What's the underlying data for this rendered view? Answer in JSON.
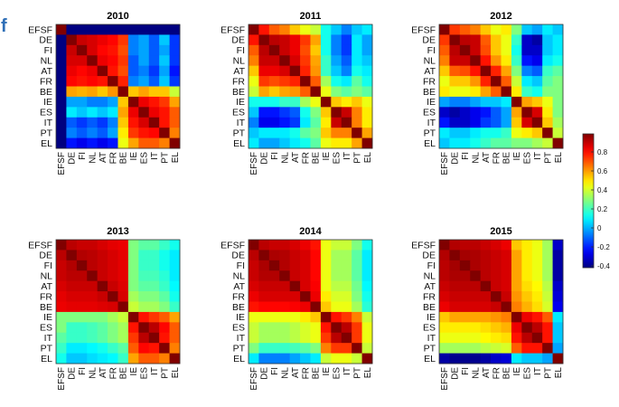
{
  "edge_glyph": "f",
  "chart_data": {
    "type": "heatmap",
    "labels": [
      "EFSF",
      "DE",
      "FI",
      "NL",
      "AT",
      "FR",
      "BE",
      "IE",
      "ES",
      "IT",
      "PT",
      "EL"
    ],
    "colorbar": {
      "ticks": [
        "0.8",
        "0.6",
        "0.4",
        "0.2",
        "0",
        "-0.2",
        "-0.4"
      ],
      "range": [
        -0.4,
        1.0
      ],
      "colormap": "jet"
    },
    "panels": [
      {
        "title": "2010",
        "matrix": [
          [
            1.0,
            -0.55,
            -0.55,
            -0.55,
            -0.55,
            -0.55,
            -0.55,
            -0.55,
            -0.55,
            -0.55,
            -0.55,
            -0.55
          ],
          [
            -0.55,
            1.0,
            0.9,
            0.88,
            0.85,
            0.82,
            0.75,
            -0.05,
            0.0,
            -0.1,
            0.05,
            -0.15
          ],
          [
            -0.55,
            0.9,
            1.0,
            0.88,
            0.82,
            0.8,
            0.72,
            -0.05,
            0.0,
            -0.1,
            0.0,
            -0.15
          ],
          [
            -0.55,
            0.88,
            0.88,
            1.0,
            0.85,
            0.82,
            0.75,
            -0.1,
            0.0,
            -0.1,
            0.05,
            -0.15
          ],
          [
            -0.55,
            0.85,
            0.82,
            0.85,
            1.0,
            0.8,
            0.72,
            -0.1,
            -0.05,
            -0.15,
            0.0,
            -0.2
          ],
          [
            -0.55,
            0.82,
            0.8,
            0.82,
            0.8,
            1.0,
            0.78,
            -0.05,
            0.0,
            -0.1,
            0.05,
            -0.15
          ],
          [
            -0.55,
            0.6,
            0.58,
            0.6,
            0.55,
            0.62,
            1.0,
            0.55,
            0.6,
            0.55,
            0.55,
            0.4
          ],
          [
            -0.55,
            0.0,
            0.0,
            -0.05,
            -0.05,
            0.0,
            0.55,
            1.0,
            0.85,
            0.8,
            0.75,
            0.6
          ],
          [
            -0.55,
            0.1,
            0.05,
            0.1,
            0.05,
            0.1,
            0.6,
            0.85,
            1.0,
            0.85,
            0.8,
            0.7
          ],
          [
            -0.55,
            -0.1,
            -0.15,
            -0.1,
            -0.15,
            -0.05,
            0.55,
            0.8,
            0.88,
            1.0,
            0.8,
            0.7
          ],
          [
            -0.55,
            -0.05,
            -0.1,
            -0.05,
            -0.1,
            0.0,
            0.5,
            0.75,
            0.8,
            0.82,
            1.0,
            0.65
          ],
          [
            -0.55,
            -0.2,
            -0.25,
            -0.2,
            -0.25,
            -0.2,
            0.45,
            0.6,
            0.7,
            0.7,
            0.65,
            1.0
          ]
        ]
      },
      {
        "title": "2011",
        "matrix": [
          [
            1.0,
            0.8,
            0.7,
            0.65,
            0.55,
            0.45,
            0.4,
            0.15,
            0.05,
            -0.05,
            0.05,
            0.1
          ],
          [
            0.8,
            1.0,
            0.92,
            0.9,
            0.85,
            0.75,
            0.6,
            0.15,
            -0.05,
            -0.15,
            0.1,
            0.0
          ],
          [
            0.7,
            0.92,
            1.0,
            0.9,
            0.85,
            0.72,
            0.55,
            0.15,
            -0.05,
            -0.15,
            0.1,
            0.0
          ],
          [
            0.65,
            0.9,
            0.9,
            1.0,
            0.88,
            0.75,
            0.6,
            0.2,
            0.0,
            -0.1,
            0.1,
            0.05
          ],
          [
            0.55,
            0.85,
            0.85,
            0.88,
            1.0,
            0.78,
            0.62,
            0.2,
            0.05,
            -0.05,
            0.15,
            0.1
          ],
          [
            0.45,
            0.75,
            0.72,
            0.75,
            0.78,
            1.0,
            0.7,
            0.35,
            0.15,
            0.1,
            0.25,
            0.15
          ],
          [
            0.4,
            0.6,
            0.55,
            0.6,
            0.62,
            0.7,
            1.0,
            0.45,
            0.3,
            0.25,
            0.3,
            0.25
          ],
          [
            0.15,
            0.15,
            0.15,
            0.2,
            0.2,
            0.35,
            0.45,
            1.0,
            0.55,
            0.5,
            0.55,
            0.45
          ],
          [
            0.05,
            -0.2,
            -0.2,
            -0.15,
            -0.1,
            0.15,
            0.3,
            0.55,
            1.0,
            0.9,
            0.65,
            0.5
          ],
          [
            -0.05,
            -0.25,
            -0.25,
            -0.2,
            -0.15,
            0.1,
            0.25,
            0.5,
            0.9,
            1.0,
            0.65,
            0.5
          ],
          [
            0.05,
            0.1,
            0.1,
            0.1,
            0.15,
            0.25,
            0.3,
            0.55,
            0.65,
            0.65,
            1.0,
            0.6
          ],
          [
            0.1,
            0.0,
            0.0,
            0.05,
            0.1,
            0.15,
            0.25,
            0.45,
            0.5,
            0.5,
            0.6,
            1.0
          ]
        ]
      },
      {
        "title": "2012",
        "matrix": [
          [
            1.0,
            0.75,
            0.7,
            0.65,
            0.55,
            0.45,
            0.5,
            0.3,
            0.05,
            0.0,
            0.1,
            0.05
          ],
          [
            0.75,
            1.0,
            0.92,
            0.9,
            0.7,
            0.55,
            0.45,
            0.2,
            -0.3,
            -0.35,
            0.05,
            0.1
          ],
          [
            0.7,
            0.92,
            1.0,
            0.9,
            0.72,
            0.55,
            0.45,
            0.15,
            -0.3,
            -0.3,
            0.05,
            0.1
          ],
          [
            0.65,
            0.9,
            0.9,
            1.0,
            0.8,
            0.62,
            0.5,
            0.2,
            -0.2,
            -0.25,
            0.1,
            0.15
          ],
          [
            0.55,
            0.7,
            0.72,
            0.8,
            1.0,
            0.78,
            0.6,
            0.3,
            -0.05,
            -0.1,
            0.2,
            0.25
          ],
          [
            0.45,
            0.55,
            0.55,
            0.62,
            0.78,
            1.0,
            0.7,
            0.4,
            0.1,
            0.05,
            0.25,
            0.3
          ],
          [
            0.5,
            0.45,
            0.45,
            0.5,
            0.6,
            0.7,
            1.0,
            0.5,
            0.2,
            0.15,
            0.3,
            0.3
          ],
          [
            0.0,
            -0.05,
            -0.05,
            0.0,
            0.05,
            0.05,
            0.1,
            1.0,
            0.6,
            0.55,
            0.45,
            0.3
          ],
          [
            -0.3,
            -0.35,
            -0.3,
            -0.25,
            -0.2,
            -0.1,
            0.0,
            0.6,
            1.0,
            0.88,
            0.5,
            0.3
          ],
          [
            -0.2,
            -0.3,
            -0.3,
            -0.25,
            -0.15,
            -0.1,
            0.0,
            0.55,
            0.88,
            1.0,
            0.55,
            0.35
          ],
          [
            0.1,
            0.05,
            0.05,
            0.1,
            0.15,
            0.15,
            0.2,
            0.45,
            0.5,
            0.55,
            1.0,
            0.4
          ],
          [
            0.05,
            0.1,
            0.1,
            0.15,
            0.2,
            0.25,
            0.25,
            0.3,
            0.3,
            0.35,
            0.4,
            1.0
          ]
        ]
      },
      {
        "title": "2013",
        "matrix": [
          [
            1.0,
            0.92,
            0.9,
            0.9,
            0.88,
            0.86,
            0.85,
            0.3,
            0.25,
            0.25,
            0.2,
            0.15
          ],
          [
            0.92,
            1.0,
            0.93,
            0.92,
            0.9,
            0.88,
            0.86,
            0.3,
            0.2,
            0.2,
            0.15,
            0.1
          ],
          [
            0.9,
            0.93,
            1.0,
            0.92,
            0.9,
            0.88,
            0.86,
            0.3,
            0.2,
            0.2,
            0.15,
            0.1
          ],
          [
            0.9,
            0.92,
            0.92,
            1.0,
            0.9,
            0.88,
            0.86,
            0.3,
            0.22,
            0.22,
            0.18,
            0.1
          ],
          [
            0.88,
            0.9,
            0.9,
            0.9,
            1.0,
            0.9,
            0.87,
            0.3,
            0.25,
            0.25,
            0.2,
            0.12
          ],
          [
            0.86,
            0.88,
            0.88,
            0.88,
            0.9,
            1.0,
            0.88,
            0.35,
            0.3,
            0.3,
            0.25,
            0.15
          ],
          [
            0.85,
            0.86,
            0.86,
            0.86,
            0.87,
            0.88,
            1.0,
            0.4,
            0.35,
            0.35,
            0.3,
            0.2
          ],
          [
            0.3,
            0.3,
            0.3,
            0.3,
            0.3,
            0.35,
            0.4,
            1.0,
            0.8,
            0.75,
            0.7,
            0.6
          ],
          [
            0.3,
            0.2,
            0.2,
            0.22,
            0.25,
            0.3,
            0.35,
            0.8,
            1.0,
            0.92,
            0.82,
            0.7
          ],
          [
            0.25,
            0.2,
            0.2,
            0.22,
            0.25,
            0.3,
            0.35,
            0.75,
            0.92,
            1.0,
            0.8,
            0.7
          ],
          [
            0.2,
            0.1,
            0.1,
            0.12,
            0.15,
            0.2,
            0.25,
            0.7,
            0.82,
            0.8,
            1.0,
            0.65
          ],
          [
            0.15,
            0.05,
            0.05,
            0.08,
            0.1,
            0.12,
            0.2,
            0.6,
            0.7,
            0.7,
            0.65,
            1.0
          ]
        ]
      },
      {
        "title": "2014",
        "matrix": [
          [
            1.0,
            0.92,
            0.9,
            0.9,
            0.88,
            0.85,
            0.8,
            0.45,
            0.4,
            0.4,
            0.3,
            0.15
          ],
          [
            0.92,
            1.0,
            0.94,
            0.93,
            0.9,
            0.88,
            0.82,
            0.45,
            0.35,
            0.35,
            0.25,
            0.1
          ],
          [
            0.9,
            0.94,
            1.0,
            0.93,
            0.9,
            0.88,
            0.82,
            0.45,
            0.35,
            0.35,
            0.25,
            0.1
          ],
          [
            0.9,
            0.93,
            0.93,
            1.0,
            0.9,
            0.88,
            0.82,
            0.45,
            0.35,
            0.35,
            0.25,
            0.1
          ],
          [
            0.88,
            0.9,
            0.9,
            0.9,
            1.0,
            0.88,
            0.83,
            0.45,
            0.38,
            0.38,
            0.28,
            0.12
          ],
          [
            0.85,
            0.88,
            0.88,
            0.88,
            0.88,
            1.0,
            0.85,
            0.5,
            0.42,
            0.42,
            0.3,
            0.15
          ],
          [
            0.8,
            0.82,
            0.82,
            0.82,
            0.83,
            0.85,
            1.0,
            0.55,
            0.45,
            0.45,
            0.35,
            0.18
          ],
          [
            0.45,
            0.45,
            0.45,
            0.45,
            0.45,
            0.5,
            0.55,
            1.0,
            0.8,
            0.75,
            0.65,
            0.4
          ],
          [
            0.4,
            0.35,
            0.35,
            0.35,
            0.38,
            0.42,
            0.45,
            0.8,
            1.0,
            0.92,
            0.75,
            0.45
          ],
          [
            0.4,
            0.35,
            0.35,
            0.35,
            0.38,
            0.42,
            0.45,
            0.75,
            0.92,
            1.0,
            0.75,
            0.45
          ],
          [
            0.3,
            0.2,
            0.2,
            0.2,
            0.22,
            0.25,
            0.3,
            0.65,
            0.75,
            0.75,
            1.0,
            0.4
          ],
          [
            0.1,
            -0.05,
            -0.05,
            -0.05,
            0.0,
            0.05,
            0.1,
            0.4,
            0.45,
            0.45,
            0.4,
            1.0
          ]
        ]
      },
      {
        "title": "2015",
        "matrix": [
          [
            1.0,
            0.93,
            0.92,
            0.92,
            0.9,
            0.88,
            0.85,
            0.55,
            0.5,
            0.45,
            0.35,
            -0.3
          ],
          [
            0.93,
            1.0,
            0.95,
            0.94,
            0.92,
            0.9,
            0.88,
            0.6,
            0.5,
            0.45,
            0.35,
            -0.35
          ],
          [
            0.92,
            0.95,
            1.0,
            0.94,
            0.92,
            0.9,
            0.88,
            0.6,
            0.5,
            0.45,
            0.35,
            -0.35
          ],
          [
            0.92,
            0.94,
            0.94,
            1.0,
            0.92,
            0.9,
            0.88,
            0.6,
            0.5,
            0.45,
            0.35,
            -0.35
          ],
          [
            0.9,
            0.92,
            0.92,
            0.92,
            1.0,
            0.9,
            0.88,
            0.6,
            0.52,
            0.48,
            0.38,
            -0.3
          ],
          [
            0.88,
            0.9,
            0.9,
            0.9,
            0.9,
            1.0,
            0.9,
            0.62,
            0.55,
            0.5,
            0.4,
            -0.28
          ],
          [
            0.85,
            0.88,
            0.88,
            0.88,
            0.88,
            0.9,
            1.0,
            0.65,
            0.58,
            0.52,
            0.42,
            -0.25
          ],
          [
            0.55,
            0.6,
            0.6,
            0.6,
            0.6,
            0.62,
            0.65,
            1.0,
            0.85,
            0.8,
            0.7,
            0.1
          ],
          [
            0.5,
            0.5,
            0.5,
            0.5,
            0.52,
            0.55,
            0.58,
            0.85,
            1.0,
            0.92,
            0.8,
            0.05
          ],
          [
            0.45,
            0.45,
            0.45,
            0.45,
            0.48,
            0.5,
            0.52,
            0.8,
            0.92,
            1.0,
            0.8,
            0.05
          ],
          [
            0.35,
            0.35,
            0.35,
            0.35,
            0.38,
            0.4,
            0.42,
            0.7,
            0.8,
            0.8,
            1.0,
            0.0
          ],
          [
            -0.35,
            -0.38,
            -0.38,
            -0.38,
            -0.35,
            -0.3,
            -0.28,
            0.1,
            0.05,
            0.05,
            0.0,
            1.0
          ]
        ]
      }
    ]
  }
}
